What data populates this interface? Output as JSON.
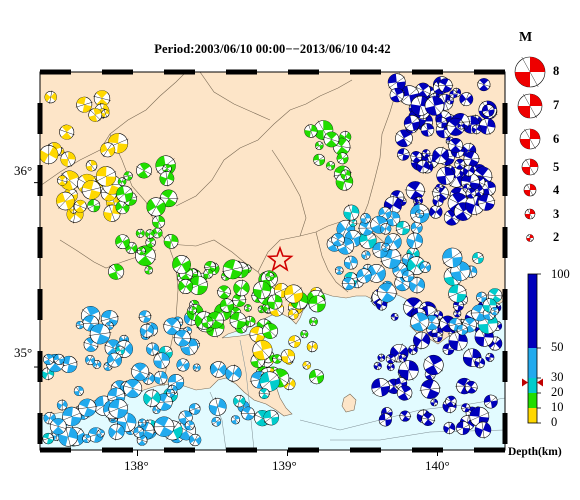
{
  "title": "Period:2003/06/10 00:00−−2013/06/10 04:42",
  "lat_labels": [
    {
      "text": "36°",
      "lat": 36.0
    },
    {
      "text": "35°",
      "lat": 35.0
    }
  ],
  "lon_labels": [
    {
      "text": "138°",
      "lon": 138.0
    },
    {
      "text": "139°",
      "lon": 139.0
    },
    {
      "text": "140°",
      "lon": 140.0
    }
  ],
  "magnitude_legend": {
    "heading": "M",
    "entries": [
      {
        "label": "8",
        "mag": 8
      },
      {
        "label": "7",
        "mag": 7
      },
      {
        "label": "6",
        "mag": 6
      },
      {
        "label": "5",
        "mag": 5
      },
      {
        "label": "4",
        "mag": 4
      },
      {
        "label": "3",
        "mag": 3
      },
      {
        "label": "2",
        "mag": 2
      }
    ]
  },
  "depth_scale": {
    "unit": "Depth(km)",
    "ticks": [
      "100",
      "50",
      "30",
      "20",
      "10",
      "0"
    ],
    "bands": [
      {
        "from": 0,
        "to": 10,
        "color": "#ffd800"
      },
      {
        "from": 10,
        "to": 20,
        "color": "#22dd00"
      },
      {
        "from": 20,
        "to": 30,
        "color": "#00cccc"
      },
      {
        "from": 30,
        "to": 50,
        "color": "#22aaee"
      },
      {
        "from": 50,
        "to": 100,
        "color": "#0000bb"
      }
    ],
    "marker_depth": 27
  },
  "colors": {
    "land": "#fde5c8",
    "sea": "#e2fbff",
    "border": "#7a6a55"
  },
  "map_extent": {
    "lon": [
      137.35,
      140.45
    ],
    "lat": [
      34.55,
      36.6
    ]
  },
  "epicenter_marker": {
    "lon": 138.95,
    "lat": 35.58,
    "color": "#d00000"
  }
}
